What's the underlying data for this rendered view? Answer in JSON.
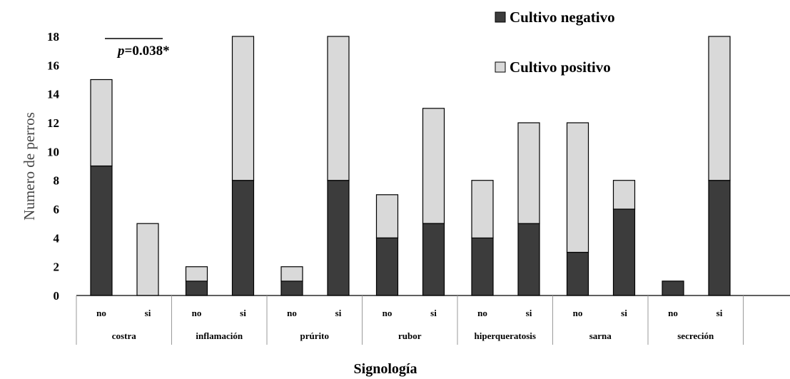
{
  "chart_data": {
    "type": "bar",
    "stacked": true,
    "groups": [
      "costra",
      "inflamación",
      "prúrito",
      "rubor",
      "hiperqueratosis",
      "sarna",
      "secreción"
    ],
    "subcategories": [
      "no",
      "si"
    ],
    "series": [
      {
        "name": "Cultivo negativo",
        "color": "#3c3c3c",
        "values": [
          9,
          0,
          1,
          8,
          1,
          8,
          4,
          5,
          4,
          5,
          3,
          6,
          1,
          8
        ]
      },
      {
        "name": "Cultivo positivo",
        "color": "#d9d9d9",
        "values": [
          6,
          5,
          1,
          10,
          1,
          10,
          3,
          8,
          4,
          7,
          9,
          2,
          0,
          10
        ]
      }
    ],
    "ylabel": "Numero de perros",
    "xlabel": "Signología",
    "ylim": [
      0,
      18
    ],
    "yticks": [
      0,
      2,
      4,
      6,
      8,
      10,
      12,
      14,
      16,
      18
    ],
    "legend_position": "top-right",
    "annotation": {
      "prefix": "p",
      "text": "=0.038*"
    }
  }
}
